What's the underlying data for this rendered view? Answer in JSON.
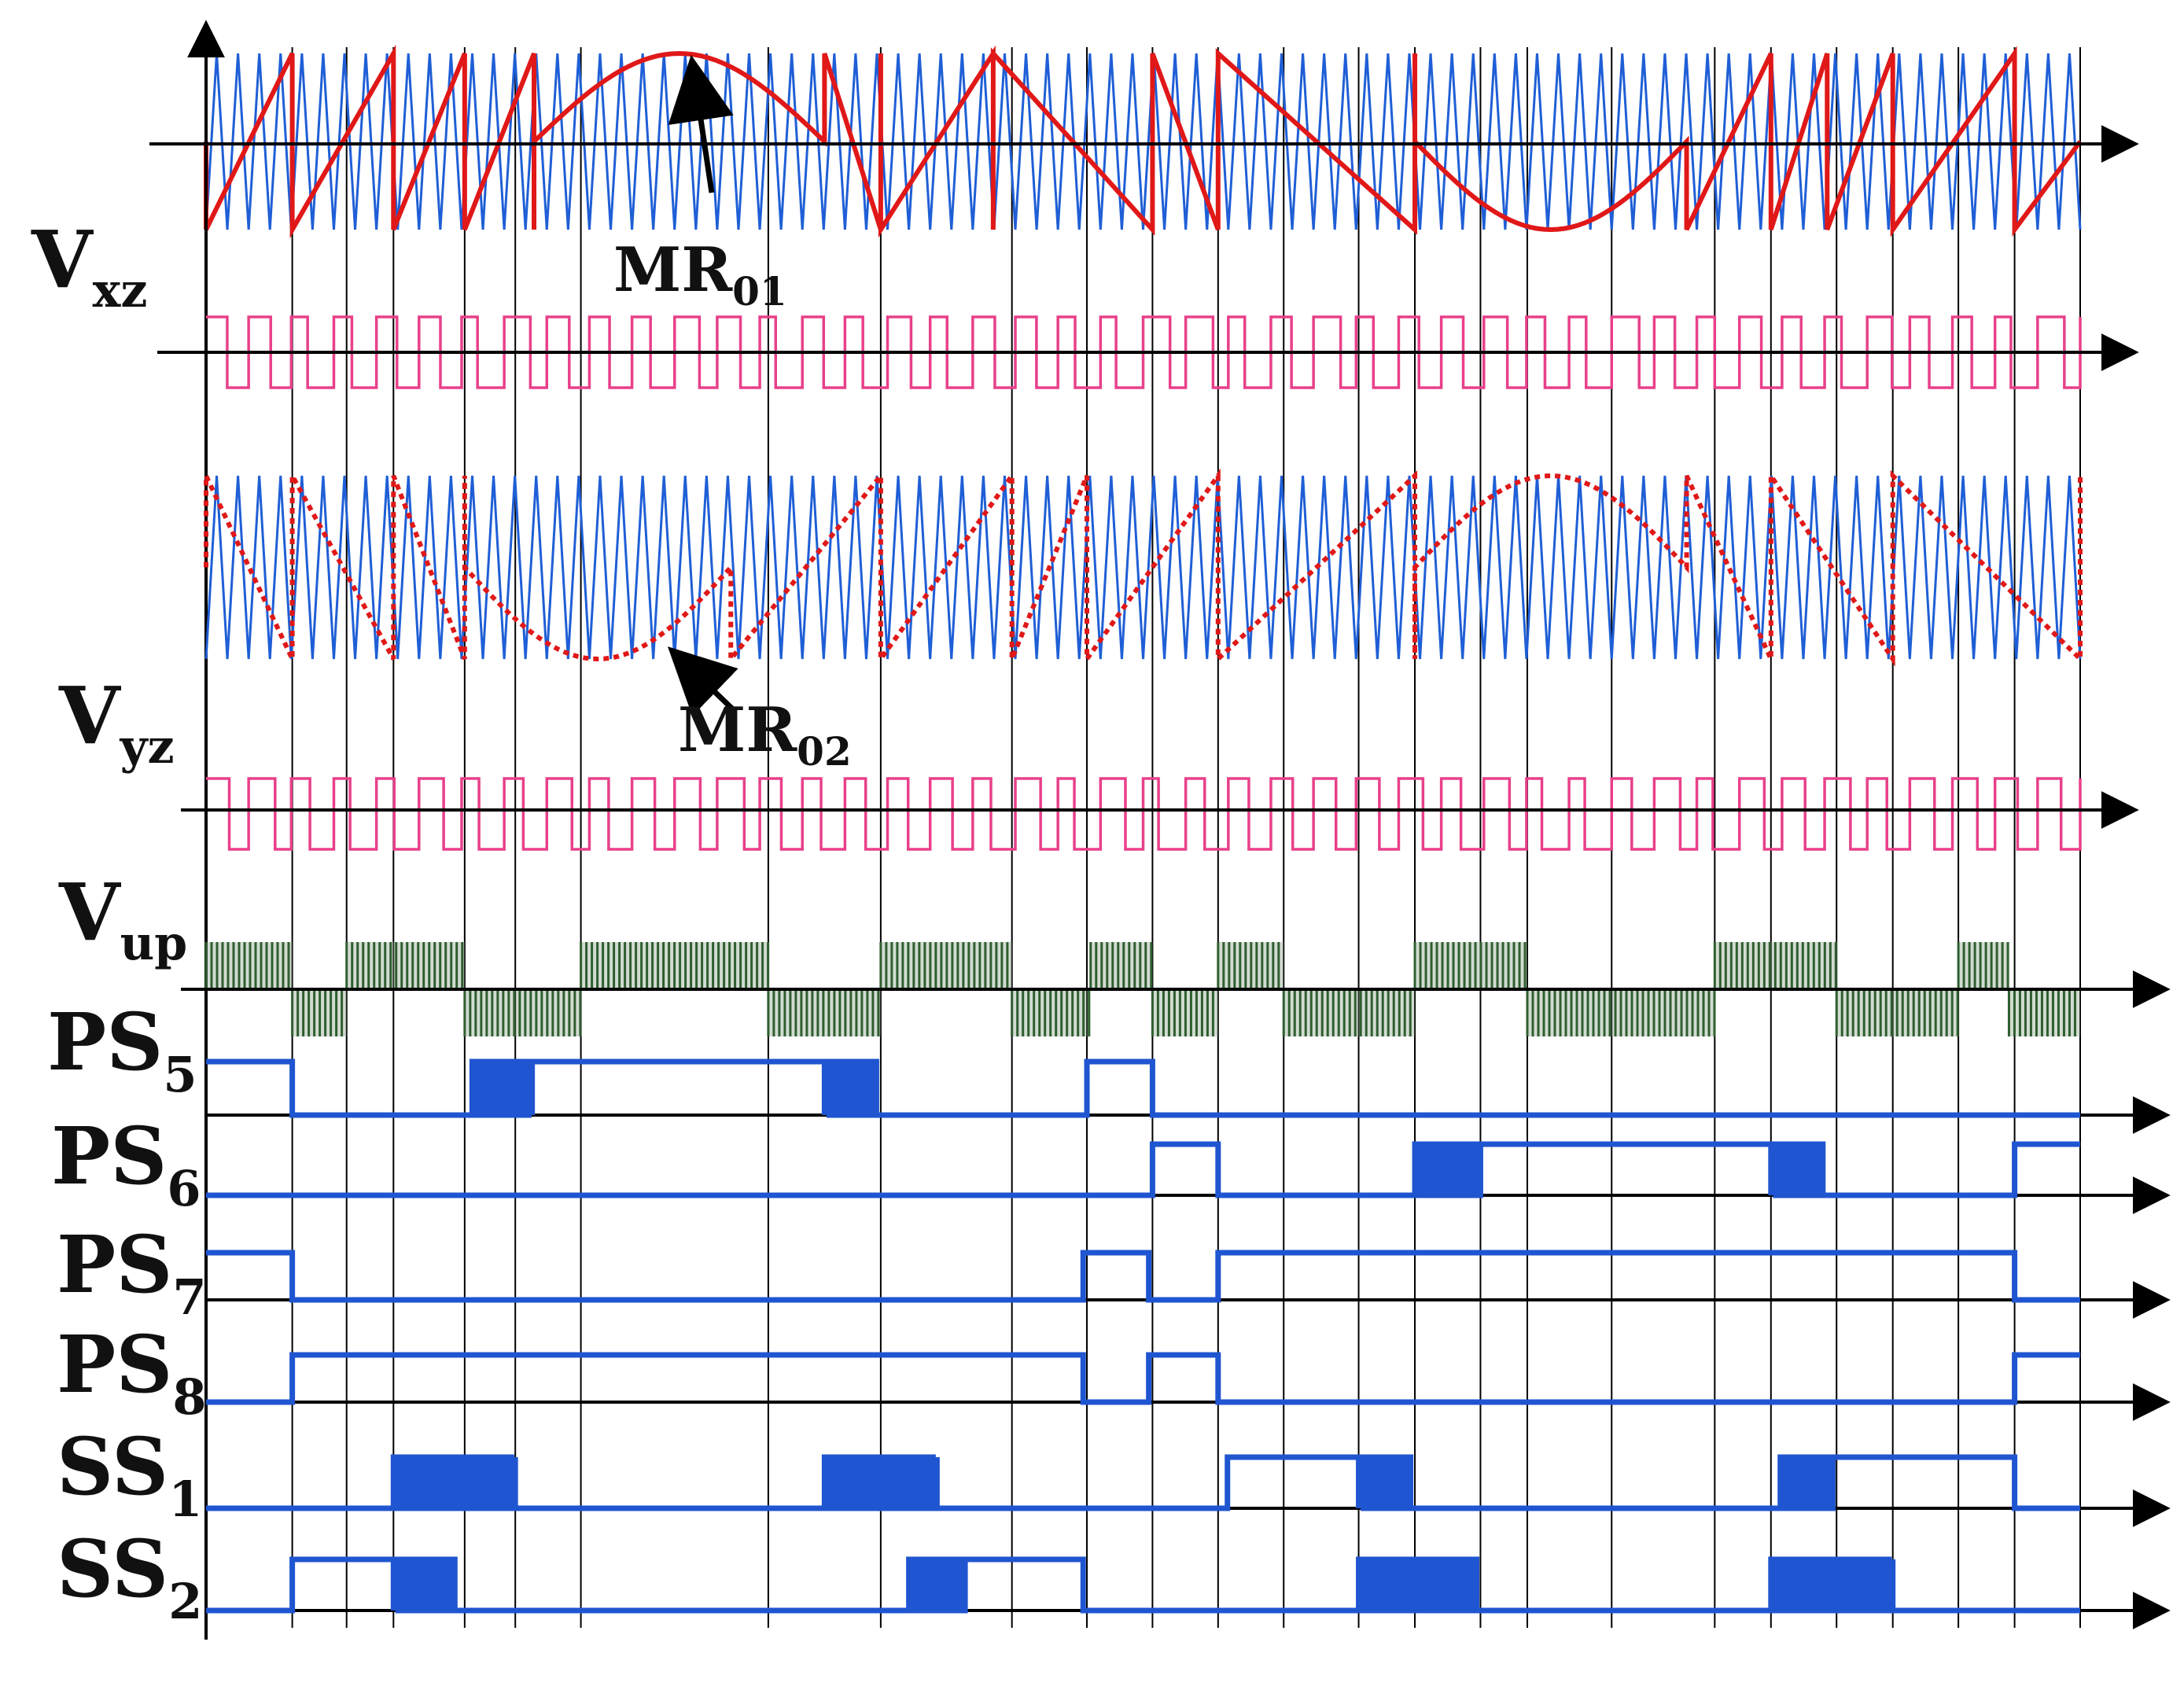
{
  "signals": {
    "vxz": {
      "base": "V",
      "sub": "xz"
    },
    "vyz": {
      "base": "V",
      "sub": "yz"
    },
    "vup": {
      "base": "V",
      "sub": "up"
    },
    "ps5": {
      "base": "PS",
      "sub": "5"
    },
    "ps6": {
      "base": "PS",
      "sub": "6"
    },
    "ps7": {
      "base": "PS",
      "sub": "7"
    },
    "ps8": {
      "base": "PS",
      "sub": "8"
    },
    "ss1": {
      "base": "SS",
      "sub": "1"
    },
    "ss2": {
      "base": "SS",
      "sub": "2"
    }
  },
  "annotations": {
    "mr01": {
      "base": "MR",
      "sub": "01"
    },
    "mr02": {
      "base": "MR",
      "sub": "02"
    }
  },
  "colors": {
    "carrier": "#1f5fd6",
    "modulating": "#e01818",
    "pulse": "#e8408a",
    "vup": "#2f5e2f",
    "gate": "#1f55d0",
    "axis": "#000000"
  },
  "gate_levels": {
    "ps5": [
      [
        0,
        1
      ],
      [
        0.046,
        0
      ],
      [
        0.142,
        0
      ],
      [
        0.142,
        "pwm"
      ],
      [
        0.174,
        1
      ],
      [
        0.33,
        1
      ],
      [
        0.33,
        "pwm"
      ],
      [
        0.36,
        0
      ],
      [
        0.47,
        0
      ],
      [
        0.47,
        1
      ],
      [
        0.505,
        1
      ],
      [
        0.505,
        0
      ],
      [
        1,
        0
      ]
    ],
    "ps6": [
      [
        0,
        0
      ],
      [
        0.505,
        0
      ],
      [
        0.505,
        1
      ],
      [
        0.54,
        1
      ],
      [
        0.54,
        0
      ],
      [
        0.645,
        0
      ],
      [
        0.645,
        "pwm"
      ],
      [
        0.68,
        1
      ],
      [
        0.835,
        1
      ],
      [
        0.835,
        "pwm"
      ],
      [
        0.865,
        0
      ],
      [
        0.965,
        0
      ],
      [
        0.965,
        1
      ],
      [
        1,
        1
      ]
    ],
    "ps7": [
      [
        0,
        1
      ],
      [
        0.046,
        1
      ],
      [
        0.046,
        0
      ],
      [
        0.468,
        0
      ],
      [
        0.468,
        1
      ],
      [
        0.503,
        1
      ],
      [
        0.503,
        0
      ],
      [
        0.54,
        0
      ],
      [
        0.54,
        1
      ],
      [
        0.965,
        1
      ],
      [
        0.965,
        0
      ],
      [
        1,
        0
      ]
    ],
    "ps8": [
      [
        0,
        0
      ],
      [
        0.046,
        0
      ],
      [
        0.046,
        1
      ],
      [
        0.468,
        1
      ],
      [
        0.468,
        0
      ],
      [
        0.503,
        0
      ],
      [
        0.503,
        1
      ],
      [
        0.54,
        1
      ],
      [
        0.54,
        0
      ],
      [
        0.965,
        0
      ],
      [
        0.965,
        1
      ],
      [
        1,
        1
      ]
    ],
    "ss1": [
      [
        0,
        0
      ],
      [
        0.1,
        0
      ],
      [
        0.1,
        "pwm"
      ],
      [
        0.165,
        1
      ],
      [
        0.165,
        0
      ],
      [
        0.33,
        0
      ],
      [
        0.33,
        "pwm"
      ],
      [
        0.39,
        1
      ],
      [
        0.39,
        0
      ],
      [
        0.545,
        0
      ],
      [
        0.545,
        1
      ],
      [
        0.615,
        1
      ],
      [
        0.615,
        "pwm"
      ],
      [
        0.645,
        0
      ],
      [
        0.84,
        0
      ],
      [
        0.84,
        "pwm"
      ],
      [
        0.868,
        1
      ],
      [
        0.965,
        1
      ],
      [
        0.965,
        0
      ],
      [
        1,
        0
      ]
    ],
    "ss2": [
      [
        0,
        0
      ],
      [
        0.046,
        0
      ],
      [
        0.046,
        1
      ],
      [
        0.1,
        1
      ],
      [
        0.1,
        "pwm"
      ],
      [
        0.135,
        0
      ],
      [
        0.375,
        0
      ],
      [
        0.375,
        "pwm"
      ],
      [
        0.405,
        1
      ],
      [
        0.468,
        1
      ],
      [
        0.468,
        0
      ],
      [
        0.615,
        0
      ],
      [
        0.615,
        "pwm"
      ],
      [
        0.68,
        0
      ],
      [
        0.835,
        0
      ],
      [
        0.835,
        "pwm"
      ],
      [
        0.9,
        1
      ],
      [
        0.9,
        0
      ],
      [
        1,
        0
      ]
    ]
  },
  "vup_segments": [
    [
      0.0,
      0.046,
      1
    ],
    [
      0.046,
      0.075,
      -1
    ],
    [
      0.075,
      0.138,
      1
    ],
    [
      0.138,
      0.2,
      -1
    ],
    [
      0.2,
      0.3,
      1
    ],
    [
      0.3,
      0.36,
      -1
    ],
    [
      0.36,
      0.43,
      1
    ],
    [
      0.43,
      0.472,
      -1
    ],
    [
      0.472,
      0.505,
      1
    ],
    [
      0.505,
      0.54,
      -1
    ],
    [
      0.54,
      0.575,
      1
    ],
    [
      0.575,
      0.645,
      -1
    ],
    [
      0.645,
      0.705,
      1
    ],
    [
      0.705,
      0.805,
      -1
    ],
    [
      0.805,
      0.87,
      1
    ],
    [
      0.87,
      0.935,
      -1
    ],
    [
      0.935,
      0.962,
      1
    ],
    [
      0.962,
      1.0,
      -1
    ]
  ]
}
